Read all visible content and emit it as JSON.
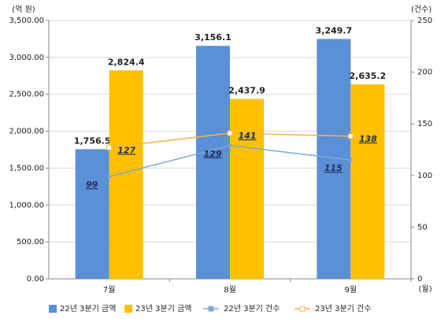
{
  "chart_data": {
    "type": "bar",
    "y_label": "(억 원)",
    "y2_label": "(건수)",
    "x_label": "(월)",
    "categories": [
      "7월",
      "8월",
      "9월"
    ],
    "series": [
      {
        "name": "22년 3분기 금액",
        "type": "bar",
        "color": "#5b8fd6",
        "values": [
          1756.5,
          3156.1,
          3249.7
        ],
        "value_labels": [
          "1,756.5",
          "3,156.1",
          "3,249.7"
        ]
      },
      {
        "name": "23년 3분기 금액",
        "type": "bar",
        "color": "#ffc000",
        "values": [
          2824.4,
          2437.9,
          2635.2
        ],
        "value_labels": [
          "2,824.4",
          "2,437.9",
          "2,635.2"
        ]
      },
      {
        "name": "22년 3분기 건수",
        "type": "line",
        "axis": "y2",
        "color": "#7fa7d9",
        "values": [
          99,
          129,
          115
        ]
      },
      {
        "name": "23년 3분기 건수",
        "type": "line",
        "axis": "y2",
        "color": "#f4b350",
        "values": [
          127,
          141,
          138
        ]
      }
    ],
    "ylim": [
      0,
      3500
    ],
    "yticks": [
      {
        "value": 0,
        "label": "0.00"
      },
      {
        "value": 500,
        "label": "500.00"
      },
      {
        "value": 1000,
        "label": "1,000.00"
      },
      {
        "value": 1500,
        "label": "1,500.00"
      },
      {
        "value": 2000,
        "label": "2,000.00"
      },
      {
        "value": 2500,
        "label": "2,500.00"
      },
      {
        "value": 3000,
        "label": "3,000.00"
      },
      {
        "value": 3500,
        "label": "3,500.00"
      }
    ],
    "y2lim": [
      0,
      250
    ],
    "y2ticks": [
      0,
      50,
      100,
      150,
      200,
      250
    ],
    "grid": true
  }
}
